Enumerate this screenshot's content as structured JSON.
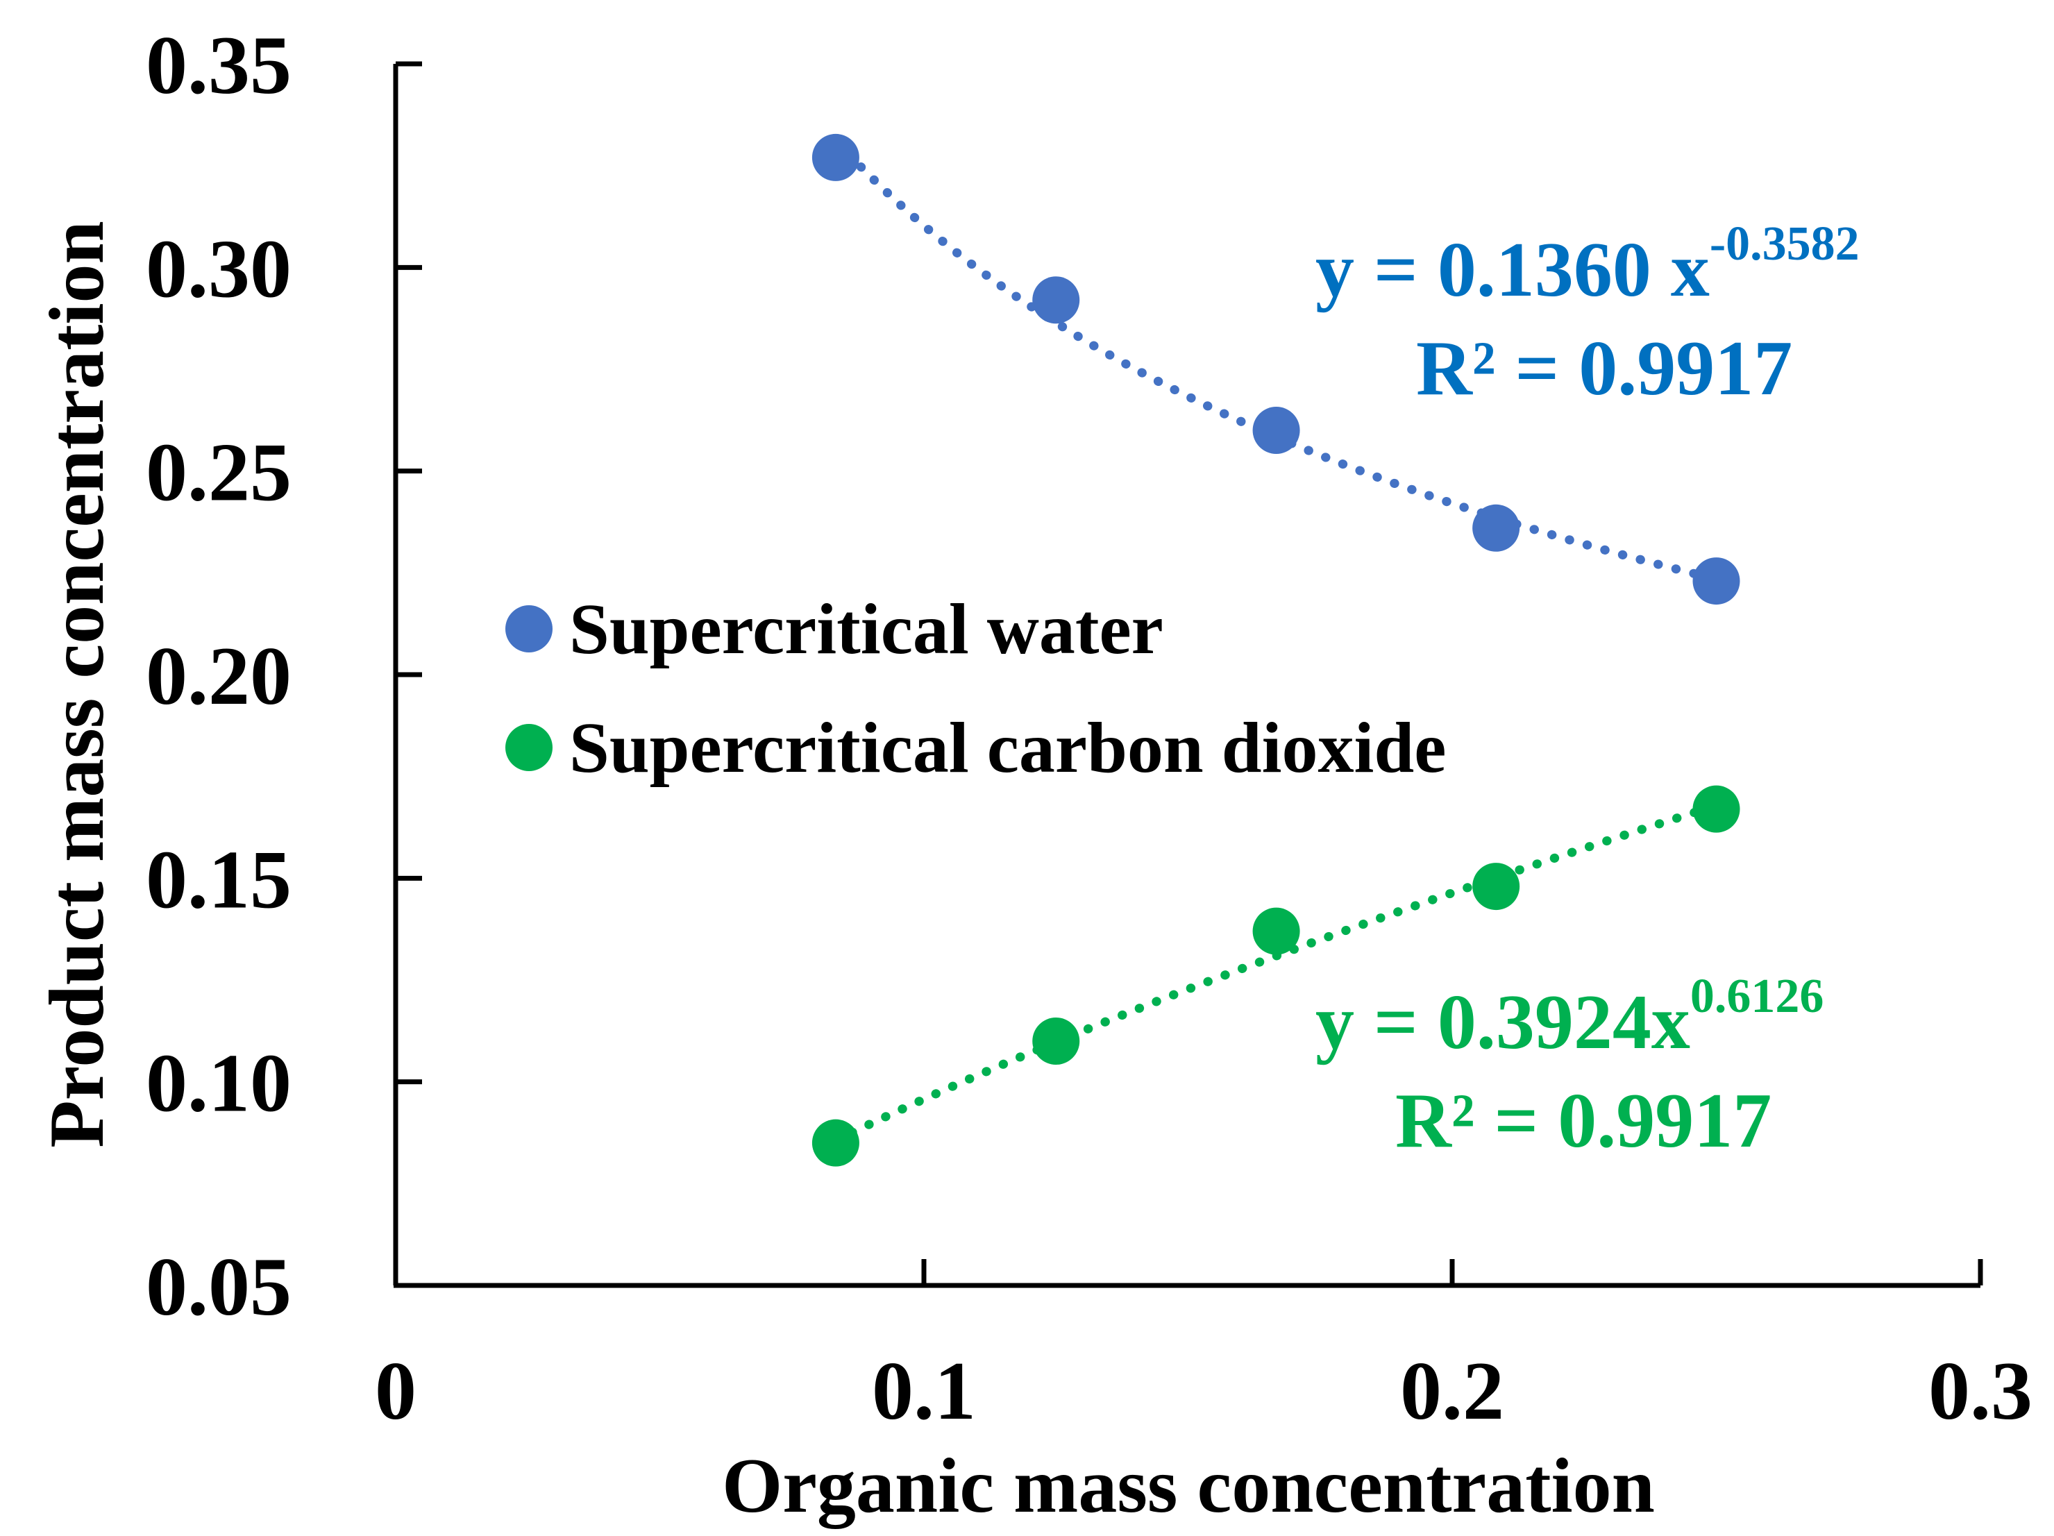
{
  "chart_data": {
    "type": "scatter",
    "xlabel": "Organic mass concentration",
    "ylabel": "Product mass concentration",
    "xlim": [
      0,
      0.3
    ],
    "ylim": [
      0.05,
      0.35
    ],
    "x_ticks": [
      "0",
      "0.1",
      "0.2",
      "0.3"
    ],
    "y_ticks": [
      "0.05",
      "0.10",
      "0.15",
      "0.20",
      "0.25",
      "0.30",
      "0.35"
    ],
    "grid": false,
    "legend_position": "center-left",
    "series": [
      {
        "name": "Supercritical water",
        "color": "#4472C4",
        "x": [
          0.0833,
          0.125,
          0.1667,
          0.2083,
          0.25
        ],
        "y": [
          0.327,
          0.292,
          0.26,
          0.236,
          0.223
        ],
        "trendline": {
          "type": "power",
          "a": 0.136,
          "b": -0.3582
        },
        "annotation": {
          "eq_main": "y = 0.1360 x",
          "eq_exp": "-0.3582",
          "r2": "R² = 0.9917"
        }
      },
      {
        "name": "Supercritical carbon dioxide",
        "color": "#00B050",
        "x": [
          0.0833,
          0.125,
          0.1667,
          0.2083,
          0.25
        ],
        "y": [
          0.085,
          0.11,
          0.137,
          0.148,
          0.167
        ],
        "trendline": {
          "type": "power",
          "a": 0.3924,
          "b": 0.6126
        },
        "annotation": {
          "eq_main": "y = 0.3924x",
          "eq_exp": "0.6126",
          "r2": "R² = 0.9917"
        }
      }
    ]
  }
}
